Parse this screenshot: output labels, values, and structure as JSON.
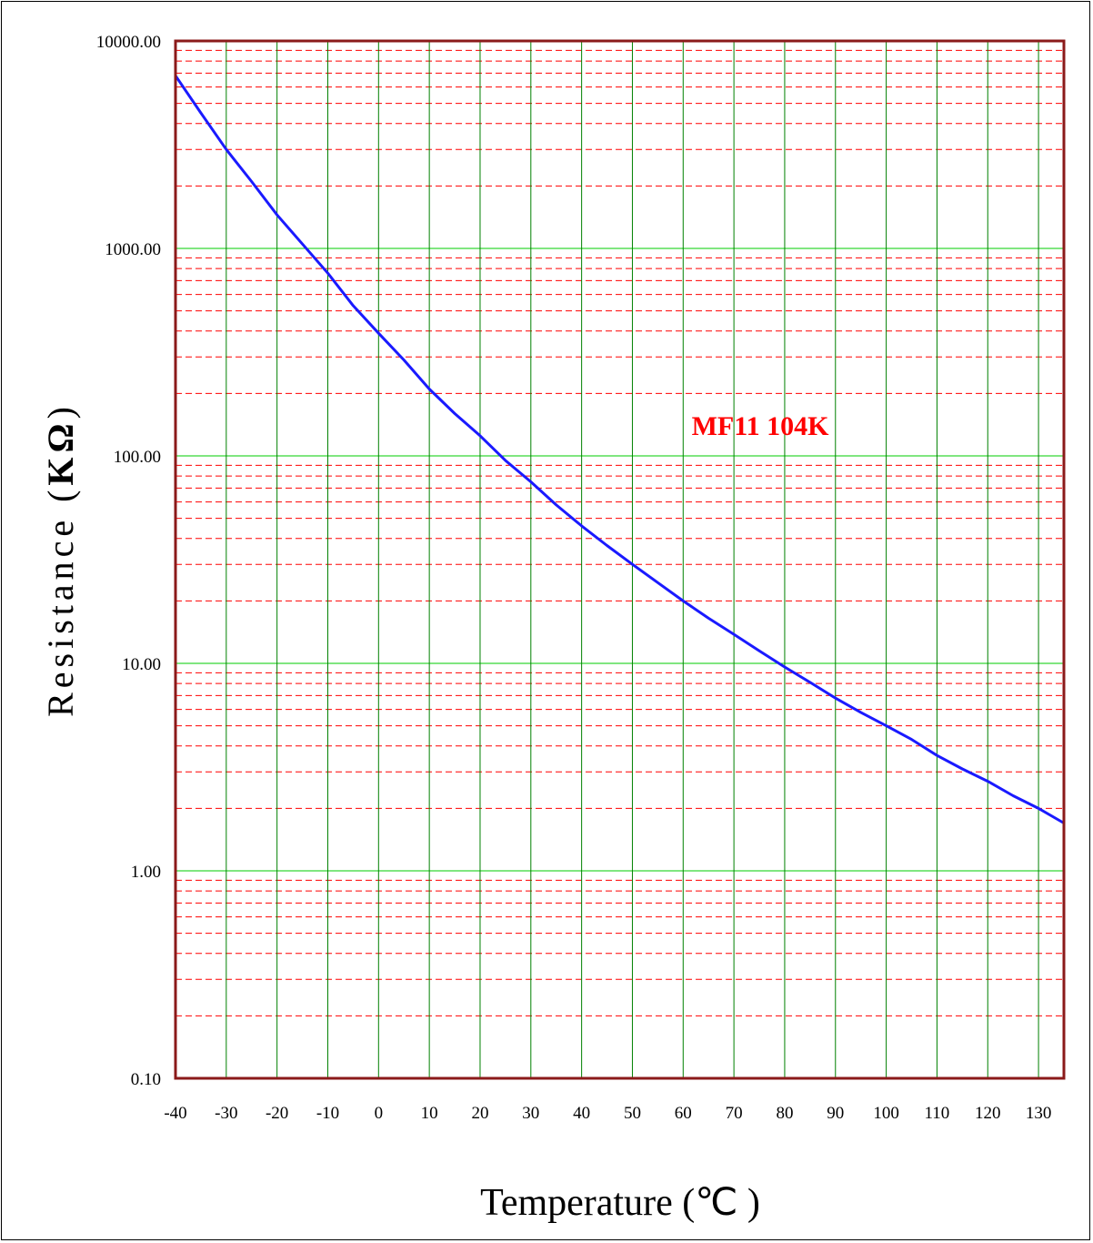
{
  "chart_data": {
    "type": "line",
    "scale_y": "log",
    "title": "",
    "xlabel": "Temperature (℃ )",
    "ylabel_text": "Resistance (",
    "ylabel_unit": "KΩ",
    "ylabel_close": ")",
    "annotation": "MF11  104K",
    "xlim": [
      -40,
      135
    ],
    "ylim": [
      0.1,
      10000
    ],
    "x_ticks": [
      "-40",
      "-30",
      "-20",
      "-10",
      "0",
      "10",
      "20",
      "30",
      "40",
      "50",
      "60",
      "70",
      "80",
      "90",
      "100",
      "110",
      "120",
      "130"
    ],
    "y_ticks": [
      "0.10",
      "1.00",
      "10.00",
      "100.00",
      "1000.00",
      "10000.00"
    ],
    "grid": true,
    "colors": {
      "line": "#1a1aff",
      "frame": "#8b1a1a",
      "major_grid": "#00cc00",
      "vertical_grid": "#008000",
      "minor_grid": "#ff0000",
      "annotation": "#ff0000"
    },
    "series": [
      {
        "x": [
          -40,
          -35,
          -30,
          -25,
          -20,
          -15,
          -10,
          -5,
          0,
          5,
          10,
          15,
          20,
          25,
          30,
          35,
          40,
          45,
          50,
          55,
          60,
          65,
          70,
          75,
          80,
          85,
          90,
          95,
          100,
          105,
          110,
          115,
          120,
          125,
          130,
          135
        ],
        "values": [
          6800,
          4500,
          3000,
          2100,
          1450,
          1050,
          760,
          530,
          390,
          290,
          210,
          160,
          125,
          95,
          75,
          58,
          46,
          37,
          30,
          24.5,
          20,
          16.5,
          13.8,
          11.5,
          9.6,
          8.1,
          6.8,
          5.8,
          5.0,
          4.3,
          3.6,
          3.1,
          2.7,
          2.3,
          2.0,
          1.7
        ]
      }
    ]
  }
}
